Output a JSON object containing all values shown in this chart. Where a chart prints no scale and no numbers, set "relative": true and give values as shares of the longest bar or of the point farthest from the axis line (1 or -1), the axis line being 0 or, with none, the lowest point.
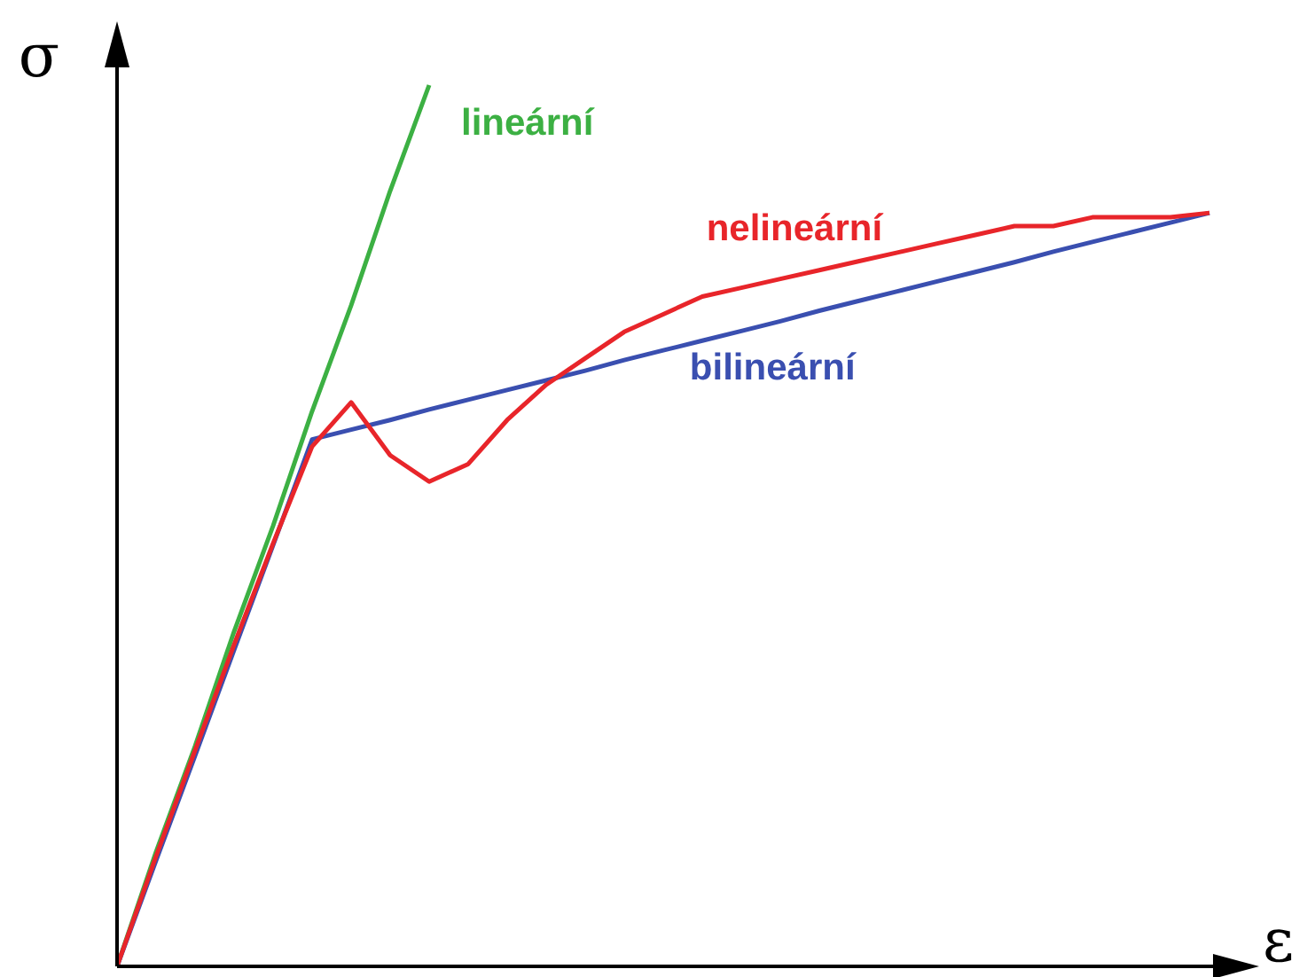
{
  "chart_data": {
    "type": "line",
    "relative": true,
    "xlabel": "ε",
    "ylabel": "σ",
    "tick_labels": false,
    "grid": false,
    "legend": false,
    "marker": "none",
    "line_style": "solid",
    "categories": [
      null,
      null,
      null,
      null,
      null,
      null,
      null,
      null,
      null,
      null,
      null,
      null,
      null,
      null,
      null,
      null,
      null,
      null,
      null,
      null,
      null,
      null,
      null,
      null,
      null,
      null,
      null,
      null,
      null
    ],
    "series": [
      {
        "name": "lineární",
        "color": "#3cb043",
        "values": [
          0,
          0.13,
          0.25,
          0.38,
          0.5,
          0.63,
          0.75,
          0.88,
          1,
          null,
          null,
          null,
          null,
          null,
          null,
          null,
          null,
          null,
          null,
          null,
          null,
          null,
          null,
          null,
          null,
          null,
          null,
          null,
          null
        ]
      },
      {
        "name": "nelineární",
        "color": "#e8252a",
        "values": [
          0,
          0.125,
          0.245,
          0.365,
          0.48,
          0.59,
          0.64,
          0.58,
          0.55,
          0.57,
          0.62,
          0.66,
          0.69,
          0.72,
          0.74,
          0.76,
          0.77,
          0.78,
          0.79,
          0.8,
          0.81,
          0.82,
          0.83,
          0.84,
          0.84,
          0.85,
          0.85,
          0.85,
          0.855
        ]
      },
      {
        "name": "bilineární",
        "color": "#3a4fb0",
        "values": [
          0,
          0.12,
          0.239,
          0.359,
          0.478,
          0.598,
          0.609,
          0.62,
          0.632,
          0.643,
          0.654,
          0.665,
          0.676,
          0.688,
          0.699,
          0.71,
          0.721,
          0.732,
          0.744,
          0.755,
          0.766,
          0.777,
          0.788,
          0.799,
          0.811,
          0.822,
          0.833,
          0.844,
          0.855
        ]
      }
    ]
  }
}
